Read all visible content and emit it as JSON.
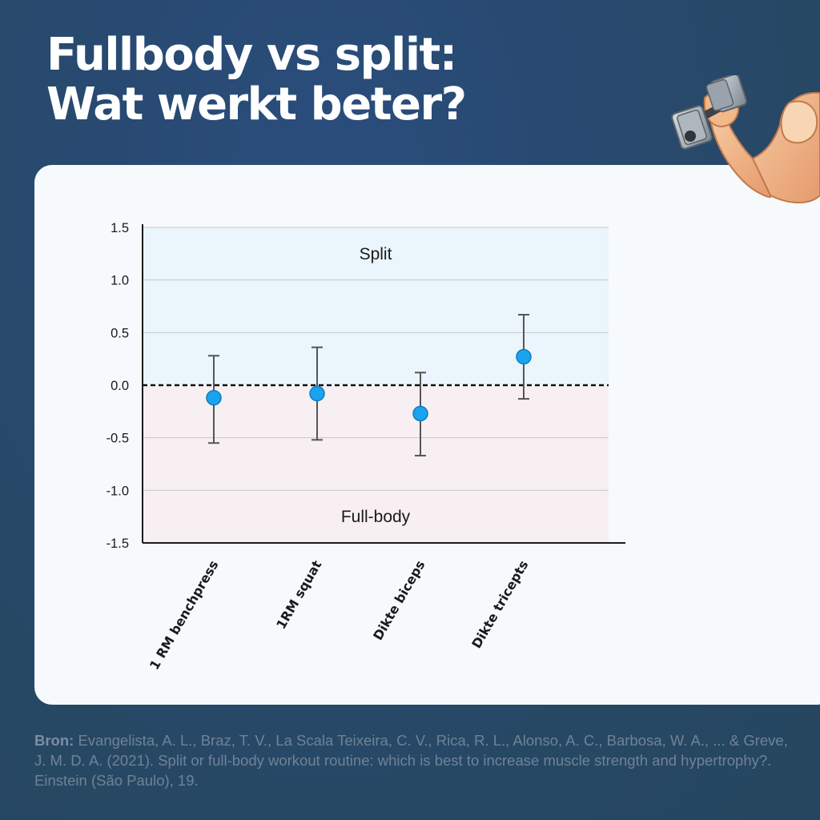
{
  "header": {
    "title_line1": "Fullbody vs split:",
    "title_line2": "Wat werkt beter?"
  },
  "source": {
    "label": "Bron:",
    "text": "Evangelista, A. L., Braz, T. V., La Scala Teixeira, C. V., Rica, R. L., Alonso, A. C., Barbosa, W. A., ... & Greve, J. M. D. A. (2021). Split or full-body workout routine: which is best to increase muscle strength and hypertrophy?. Einstein (São Paulo), 19."
  },
  "icons": {
    "illustration": "flexed-arm-dumbbell-icon"
  },
  "chart_data": {
    "type": "scatter",
    "title": "",
    "xlabel": "",
    "ylabel": "",
    "ylim": [
      -1.5,
      1.5
    ],
    "yticks": [
      "1.5",
      "1.0",
      "0.5",
      "0.0",
      "-0.5",
      "-1.0",
      "-1.5"
    ],
    "ytick_values": [
      1.5,
      1.0,
      0.5,
      0.0,
      -0.5,
      -1.0,
      -1.5
    ],
    "grid": true,
    "categories": [
      "1 RM benchpress",
      "1RM squat",
      "Dikte biceps",
      "Dikte tricepts"
    ],
    "values": [
      -0.12,
      -0.08,
      -0.27,
      0.27
    ],
    "error_low": [
      -0.55,
      -0.52,
      -0.67,
      -0.13
    ],
    "error_high": [
      0.28,
      0.36,
      0.12,
      0.67
    ],
    "reference_line": 0.0,
    "regions": [
      {
        "label": "Split",
        "from": 0,
        "to": 1.5,
        "color": "#eaf5fc"
      },
      {
        "label": "Full-body",
        "from": -1.5,
        "to": 0,
        "color": "#f7eff2"
      }
    ],
    "colors": {
      "point": "#1aa3ee",
      "point_stroke": "#0f7cc0",
      "error_bar": "#555555",
      "axis": "#1a1a1a",
      "grid": "#c7c7c7"
    }
  }
}
